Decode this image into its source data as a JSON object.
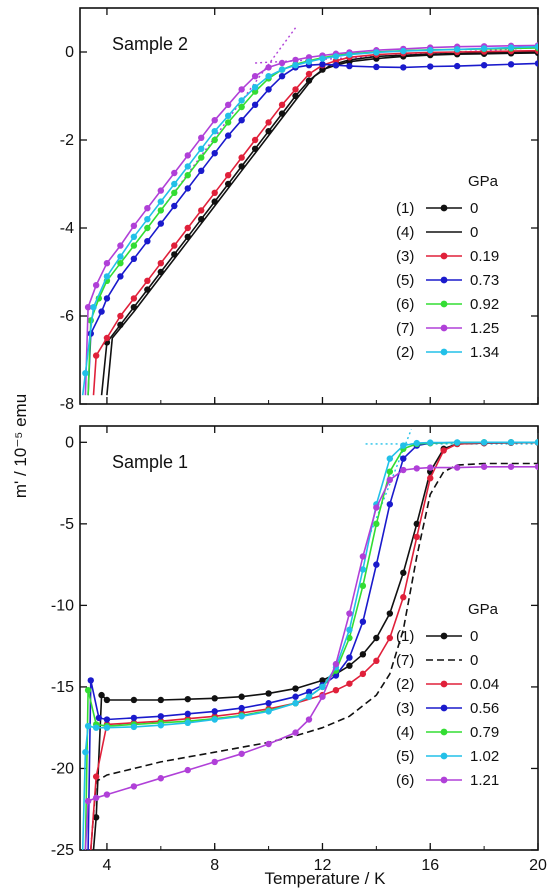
{
  "chart_data": [
    {
      "type": "line",
      "title": "Sample 2",
      "xlabel": "Temperature / K",
      "ylabel": "m' / 10⁻⁵ emu",
      "xlim": [
        3,
        20
      ],
      "ylim": [
        -8,
        1
      ],
      "xticks": [
        "4",
        "8",
        "12",
        "16",
        "20"
      ],
      "yticks": [
        "0",
        "-2",
        "-4",
        "-6",
        "-8"
      ],
      "legend_title": "GPa",
      "legend_position": "right",
      "grid": false,
      "guides": [
        {
          "style": "dotted",
          "color": "#b040d8",
          "x": [
            6,
            11
          ],
          "y": [
            -3.6,
            0.55
          ]
        },
        {
          "style": "dotted",
          "color": "#b040d8",
          "x": [
            9.5,
            20
          ],
          "y": [
            -0.25,
            0.1
          ]
        }
      ],
      "series": [
        {
          "label": "(1)",
          "pressure": "0",
          "color": "#111111",
          "marker": true,
          "x": [
            3.8,
            4.0,
            4.5,
            5,
            5.5,
            6,
            6.5,
            7,
            7.5,
            8,
            8.5,
            9,
            9.5,
            10,
            10.5,
            11,
            11.5,
            12,
            12.5,
            13,
            14,
            15,
            16,
            17,
            18,
            19,
            20
          ],
          "y": [
            -7.8,
            -6.6,
            -6.2,
            -5.8,
            -5.4,
            -5.0,
            -4.6,
            -4.2,
            -3.8,
            -3.4,
            -3.0,
            -2.6,
            -2.2,
            -1.8,
            -1.4,
            -1.0,
            -0.65,
            -0.4,
            -0.3,
            -0.22,
            -0.15,
            -0.1,
            -0.07,
            -0.05,
            -0.04,
            -0.03,
            -0.02
          ]
        },
        {
          "label": "(4)",
          "pressure": "0",
          "color": "#111111",
          "marker": false,
          "x": [
            4.0,
            4.2,
            5,
            6,
            7,
            8,
            9,
            10,
            11,
            11.7,
            12.3,
            13,
            14,
            16,
            18,
            20
          ],
          "y": [
            -7.8,
            -6.5,
            -5.9,
            -5.1,
            -4.3,
            -3.5,
            -2.7,
            -1.9,
            -1.1,
            -0.55,
            -0.3,
            -0.18,
            -0.1,
            -0.05,
            -0.02,
            0.0
          ]
        },
        {
          "label": "(3)",
          "pressure": "0.19",
          "color": "#e0203a",
          "marker": true,
          "x": [
            3.5,
            3.6,
            4,
            4.5,
            5,
            5.5,
            6,
            6.5,
            7,
            7.5,
            8,
            8.5,
            9,
            9.5,
            10,
            10.5,
            11,
            11.5,
            12,
            12.5,
            13,
            14,
            15,
            16,
            17,
            18,
            19,
            20
          ],
          "y": [
            -7.8,
            -6.9,
            -6.5,
            -6.0,
            -5.6,
            -5.2,
            -4.8,
            -4.4,
            -4.0,
            -3.6,
            -3.2,
            -2.8,
            -2.4,
            -2.0,
            -1.6,
            -1.2,
            -0.85,
            -0.5,
            -0.3,
            -0.2,
            -0.12,
            -0.06,
            -0.03,
            -0.01,
            0.0,
            0.01,
            0.02,
            0.03
          ]
        },
        {
          "label": "(5)",
          "pressure": "0.73",
          "color": "#1a1acc",
          "marker": true,
          "x": [
            3.3,
            3.4,
            3.8,
            4,
            4.5,
            5,
            5.5,
            6,
            6.5,
            7,
            7.5,
            8,
            8.5,
            9,
            9.5,
            10,
            10.5,
            11,
            11.5,
            12,
            12.5,
            13,
            14,
            15,
            16,
            17,
            18,
            19,
            20
          ],
          "y": [
            -7.8,
            -6.4,
            -5.9,
            -5.6,
            -5.1,
            -4.7,
            -4.3,
            -3.9,
            -3.5,
            -3.1,
            -2.7,
            -2.3,
            -1.9,
            -1.55,
            -1.2,
            -0.85,
            -0.55,
            -0.35,
            -0.3,
            -0.28,
            -0.3,
            -0.32,
            -0.34,
            -0.35,
            -0.33,
            -0.32,
            -0.3,
            -0.28,
            -0.26
          ]
        },
        {
          "label": "(6)",
          "pressure": "0.92",
          "color": "#33dd33",
          "marker": true,
          "x": [
            3.3,
            3.4,
            3.7,
            4,
            4.5,
            5,
            5.5,
            6,
            6.5,
            7,
            7.5,
            8,
            8.5,
            9,
            9.5,
            10,
            10.5,
            11,
            11.5,
            12,
            12.5,
            13,
            14,
            15,
            16,
            17,
            18,
            19,
            20
          ],
          "y": [
            -7.8,
            -6.1,
            -5.6,
            -5.2,
            -4.8,
            -4.4,
            -4.0,
            -3.6,
            -3.2,
            -2.8,
            -2.4,
            -2.0,
            -1.6,
            -1.25,
            -0.9,
            -0.6,
            -0.4,
            -0.28,
            -0.2,
            -0.13,
            -0.08,
            -0.04,
            0.0,
            0.03,
            0.05,
            0.06,
            0.07,
            0.08,
            0.09
          ]
        },
        {
          "label": "(7)",
          "pressure": "1.25",
          "color": "#b040d8",
          "marker": true,
          "x": [
            3.2,
            3.3,
            3.6,
            4,
            4.5,
            5,
            5.5,
            6,
            6.5,
            7,
            7.5,
            8,
            8.5,
            9,
            9.5,
            10,
            10.5,
            11,
            11.5,
            12,
            12.5,
            13,
            14,
            15,
            16,
            17,
            18,
            19,
            20
          ],
          "y": [
            -7.8,
            -5.8,
            -5.3,
            -4.8,
            -4.4,
            -3.95,
            -3.55,
            -3.15,
            -2.75,
            -2.35,
            -1.95,
            -1.55,
            -1.2,
            -0.85,
            -0.55,
            -0.35,
            -0.25,
            -0.18,
            -0.12,
            -0.08,
            -0.04,
            -0.01,
            0.04,
            0.07,
            0.1,
            0.12,
            0.13,
            0.14,
            0.15
          ]
        },
        {
          "label": "(2)",
          "pressure": "1.34",
          "color": "#22c0e8",
          "marker": true,
          "x": [
            3.1,
            3.2,
            3.5,
            4,
            4.5,
            5,
            5.5,
            6,
            6.5,
            7,
            7.5,
            8,
            8.5,
            9,
            9.5,
            10,
            10.5,
            11,
            11.5,
            12,
            12.5,
            13,
            14,
            15,
            16,
            17,
            18,
            19,
            20
          ],
          "y": [
            -7.8,
            -7.3,
            -5.8,
            -5.1,
            -4.65,
            -4.2,
            -3.8,
            -3.4,
            -3.0,
            -2.6,
            -2.2,
            -1.8,
            -1.45,
            -1.1,
            -0.8,
            -0.55,
            -0.4,
            -0.3,
            -0.22,
            -0.15,
            -0.1,
            -0.06,
            -0.01,
            0.02,
            0.04,
            0.06,
            0.08,
            0.1,
            0.12
          ]
        }
      ]
    },
    {
      "type": "line",
      "title": "Sample 1",
      "xlabel": "Temperature / K",
      "ylabel": "m' / 10⁻⁵ emu",
      "xlim": [
        3,
        20
      ],
      "ylim": [
        -25,
        1
      ],
      "xticks": [
        "4",
        "8",
        "12",
        "16",
        "20"
      ],
      "yticks": [
        "0",
        "-5",
        "-10",
        "-15",
        "-20",
        "-25"
      ],
      "legend_title": "GPa",
      "legend_position": "right",
      "grid": false,
      "guides": [
        {
          "style": "dotted",
          "color": "#22c0e8",
          "x": [
            13.8,
            15.3
          ],
          "y": [
            -5.5,
            0.8
          ]
        },
        {
          "style": "dotted",
          "color": "#22c0e8",
          "x": [
            13.6,
            20
          ],
          "y": [
            -0.1,
            -0.1
          ]
        }
      ],
      "series": [
        {
          "label": "(1)",
          "pressure": "0",
          "color": "#111111",
          "marker": true,
          "x": [
            3.5,
            3.6,
            3.8,
            4,
            5,
            6,
            7,
            8,
            9,
            10,
            11,
            12,
            12.5,
            13,
            13.5,
            14,
            14.5,
            15,
            15.5,
            16,
            16.5,
            17,
            18,
            19,
            20
          ],
          "y": [
            -25,
            -23.0,
            -15.5,
            -15.8,
            -15.8,
            -15.8,
            -15.75,
            -15.7,
            -15.6,
            -15.4,
            -15.1,
            -14.6,
            -14.2,
            -13.7,
            -13.0,
            -12.0,
            -10.5,
            -8.0,
            -5.0,
            -1.8,
            -0.4,
            -0.1,
            -0.05,
            -0.03,
            -0.02
          ]
        },
        {
          "label": "(7)",
          "pressure": "0",
          "color": "#111111",
          "marker": false,
          "dashed": true,
          "x": [
            3.4,
            3.6,
            4,
            5,
            6,
            7,
            8,
            9,
            10,
            11,
            12,
            13,
            14,
            14.5,
            15,
            15.5,
            16,
            16.5,
            17,
            18,
            19,
            20
          ],
          "y": [
            -25,
            -20.8,
            -20.4,
            -20.0,
            -19.6,
            -19.3,
            -19.0,
            -18.7,
            -18.4,
            -18.0,
            -17.5,
            -16.8,
            -15.5,
            -14.2,
            -11.5,
            -7.0,
            -3.2,
            -1.8,
            -1.4,
            -1.3,
            -1.3,
            -1.3
          ]
        },
        {
          "label": "(2)",
          "pressure": "0.04",
          "color": "#e0203a",
          "marker": true,
          "x": [
            3.4,
            3.6,
            4,
            5,
            6,
            7,
            8,
            9,
            10,
            11,
            12,
            12.5,
            13,
            13.5,
            14,
            14.5,
            15,
            15.5,
            16,
            16.5,
            17,
            18,
            19,
            20
          ],
          "y": [
            -25,
            -20.5,
            -17.3,
            -17.2,
            -17.1,
            -16.95,
            -16.8,
            -16.6,
            -16.35,
            -16.0,
            -15.5,
            -15.2,
            -14.8,
            -14.2,
            -13.4,
            -12.0,
            -9.5,
            -5.8,
            -2.2,
            -0.5,
            -0.1,
            -0.05,
            -0.03,
            -0.02
          ]
        },
        {
          "label": "(3)",
          "pressure": "0.56",
          "color": "#1a1acc",
          "marker": true,
          "x": [
            3.3,
            3.4,
            3.7,
            4,
            5,
            6,
            7,
            8,
            9,
            10,
            11,
            11.5,
            12,
            12.5,
            13,
            13.5,
            14,
            14.5,
            15,
            15.5,
            16,
            17,
            18,
            19,
            20
          ],
          "y": [
            -25,
            -14.6,
            -16.9,
            -17.0,
            -16.9,
            -16.8,
            -16.65,
            -16.5,
            -16.3,
            -16.0,
            -15.6,
            -15.3,
            -14.9,
            -14.3,
            -13.2,
            -11.0,
            -7.5,
            -3.8,
            -1.0,
            -0.2,
            -0.05,
            -0.02,
            -0.01,
            0.0,
            0.0
          ]
        },
        {
          "label": "(4)",
          "pressure": "0.79",
          "color": "#33dd33",
          "marker": true,
          "x": [
            3.2,
            3.3,
            3.6,
            4,
            5,
            6,
            7,
            8,
            9,
            10,
            11,
            11.5,
            12,
            12.5,
            13,
            13.5,
            14,
            14.5,
            15,
            15.5,
            16,
            17,
            18,
            19,
            20
          ],
          "y": [
            -25,
            -15.2,
            -17.3,
            -17.4,
            -17.3,
            -17.2,
            -17.1,
            -16.95,
            -16.75,
            -16.45,
            -16.0,
            -15.6,
            -15.0,
            -14.0,
            -12.0,
            -8.8,
            -5.0,
            -1.8,
            -0.4,
            -0.1,
            -0.05,
            -0.02,
            0.0,
            0.0,
            0.0
          ]
        },
        {
          "label": "(5)",
          "pressure": "1.02",
          "color": "#22c0e8",
          "marker": true,
          "x": [
            3.1,
            3.2,
            3.3,
            3.6,
            4,
            5,
            6,
            7,
            8,
            9,
            10,
            11,
            11.5,
            12,
            12.5,
            13,
            13.5,
            14,
            14.5,
            15,
            15.5,
            16,
            17,
            18,
            19,
            20
          ],
          "y": [
            -25,
            -19.0,
            -17.4,
            -17.5,
            -17.5,
            -17.45,
            -17.35,
            -17.2,
            -17.0,
            -16.8,
            -16.5,
            -16.0,
            -15.6,
            -15.0,
            -13.8,
            -11.5,
            -7.8,
            -3.8,
            -1.0,
            -0.2,
            -0.05,
            -0.02,
            -0.01,
            0.0,
            0.0,
            0.0
          ]
        },
        {
          "label": "(6)",
          "pressure": "1.21",
          "color": "#b040d8",
          "marker": true,
          "x": [
            3.2,
            3.3,
            3.6,
            4,
            5,
            6,
            7,
            8,
            9,
            10,
            11,
            11.5,
            12,
            12.5,
            13,
            13.5,
            14,
            14.5,
            15,
            15.5,
            16,
            17,
            18,
            19,
            20
          ],
          "y": [
            -25,
            -22.0,
            -21.8,
            -21.6,
            -21.1,
            -20.6,
            -20.1,
            -19.6,
            -19.1,
            -18.5,
            -17.8,
            -17.0,
            -15.6,
            -13.6,
            -10.5,
            -7.0,
            -4.0,
            -2.3,
            -1.7,
            -1.6,
            -1.55,
            -1.55,
            -1.5,
            -1.5,
            -1.5
          ]
        }
      ]
    }
  ]
}
